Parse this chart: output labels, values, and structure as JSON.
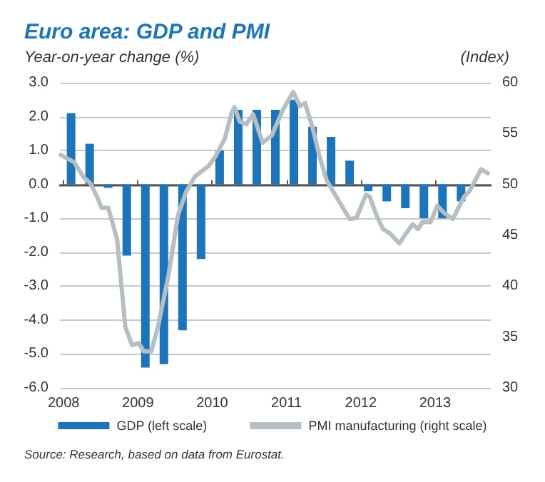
{
  "chart_data": {
    "type": "bar",
    "title": "Euro area: GDP and PMI",
    "ylabel": "Year-on-year change (%)",
    "y2label": "(Index)",
    "xlim": [
      2007.95,
      2013.75
    ],
    "xticks": [
      2008,
      2009,
      2010,
      2011,
      2012,
      2013
    ],
    "ylim": [
      -6,
      3
    ],
    "yticks": [
      {
        "value": -6,
        "label": "-6.0"
      },
      {
        "value": -5,
        "label": "-5.0"
      },
      {
        "value": -4,
        "label": "-4.0"
      },
      {
        "value": -3,
        "label": "-3.0"
      },
      {
        "value": -2,
        "label": "-2.0"
      },
      {
        "value": -1,
        "label": "-1.0"
      },
      {
        "value": 0,
        "label": "0.0"
      },
      {
        "value": 1,
        "label": "1.0"
      },
      {
        "value": 2,
        "label": "2.0"
      },
      {
        "value": 3,
        "label": "3.0"
      }
    ],
    "y2lim": [
      30,
      60
    ],
    "y2ticks": [
      30,
      35,
      40,
      45,
      50,
      55,
      60
    ],
    "grid": "y",
    "legend": "bottom",
    "series": [
      {
        "name": "GDP (left scale)",
        "axis": "y",
        "color": "#1a75bc",
        "x": [
          2008.1,
          2008.35,
          2008.6,
          2008.85,
          2009.1,
          2009.35,
          2009.6,
          2009.85,
          2010.1,
          2010.35,
          2010.6,
          2010.85,
          2011.1,
          2011.35,
          2011.6,
          2011.85,
          2012.1,
          2012.35,
          2012.6,
          2012.85,
          2013.1,
          2013.35
        ],
        "values": [
          2.1,
          1.2,
          -0.1,
          -2.1,
          -5.4,
          -5.3,
          -4.3,
          -2.2,
          1.0,
          2.2,
          2.2,
          2.2,
          2.5,
          1.7,
          1.4,
          0.7,
          -0.2,
          -0.5,
          -0.7,
          -1.0,
          -1.0,
          -0.5
        ]
      },
      {
        "name": "PMI manufacturing (right scale)",
        "type": "line",
        "axis": "y2",
        "color": "#b4bec3",
        "x": [
          2007.96,
          2008.14,
          2008.27,
          2008.36,
          2008.45,
          2008.51,
          2008.6,
          2008.72,
          2008.83,
          2008.92,
          2009.01,
          2009.08,
          2009.18,
          2009.27,
          2009.41,
          2009.54,
          2009.65,
          2009.77,
          2009.95,
          2010.04,
          2010.17,
          2010.26,
          2010.3,
          2010.37,
          2010.46,
          2010.55,
          2010.68,
          2010.8,
          2010.95,
          2011.09,
          2011.18,
          2011.25,
          2011.35,
          2011.44,
          2011.54,
          2011.67,
          2011.85,
          2011.94,
          2012.07,
          2012.12,
          2012.21,
          2012.3,
          2012.39,
          2012.52,
          2012.61,
          2012.7,
          2012.77,
          2012.83,
          2012.94,
          2013.03,
          2013.12,
          2013.24,
          2013.39,
          2013.46,
          2013.62,
          2013.71
        ],
        "values": [
          52.9,
          52.2,
          50.7,
          50.1,
          48.8,
          47.7,
          47.7,
          44.6,
          36.0,
          34.2,
          34.4,
          33.6,
          33.6,
          36.0,
          41.0,
          47.0,
          49.3,
          50.8,
          51.8,
          52.7,
          54.5,
          57.0,
          57.6,
          56.2,
          55.9,
          56.9,
          54.1,
          54.8,
          57.3,
          59.1,
          57.7,
          58.0,
          55.6,
          52.9,
          50.4,
          48.8,
          46.6,
          46.7,
          49.0,
          48.8,
          47.0,
          45.6,
          45.2,
          44.2,
          45.2,
          46.1,
          45.6,
          46.3,
          46.3,
          47.9,
          47.2,
          46.6,
          48.8,
          49.3,
          51.5,
          51.1
        ]
      }
    ],
    "annotations": [
      "Source: Research, based on data from Eurostat."
    ]
  }
}
